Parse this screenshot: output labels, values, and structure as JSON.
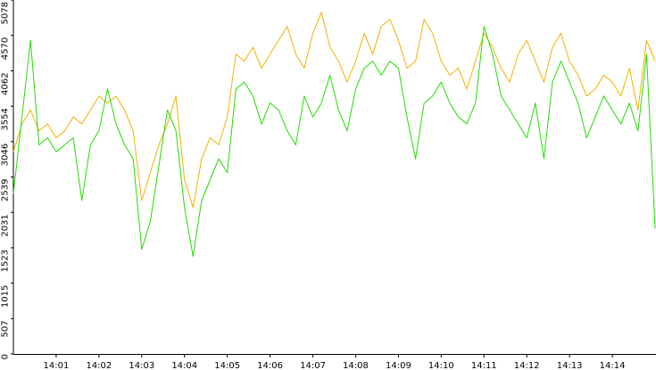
{
  "chart_data": {
    "type": "line",
    "categories": [
      null,
      null,
      null,
      null,
      null,
      "14:01",
      null,
      null,
      null,
      null,
      "14:02",
      null,
      null,
      null,
      null,
      "14:03",
      null,
      null,
      null,
      null,
      "14:04",
      null,
      null,
      null,
      null,
      "14:05",
      null,
      null,
      null,
      null,
      "14:06",
      null,
      null,
      null,
      null,
      "14:07",
      null,
      null,
      null,
      null,
      "14:08",
      null,
      null,
      null,
      null,
      "14:09",
      null,
      null,
      null,
      null,
      "14:10",
      null,
      null,
      null,
      null,
      "14:11",
      null,
      null,
      null,
      null,
      "14:12",
      null,
      null,
      null,
      null,
      "14:13",
      null,
      null,
      null,
      null,
      "14:14",
      null,
      null,
      null,
      null,
      null
    ],
    "series": [
      {
        "color": "#f5b000",
        "values": [
          2900,
          3300,
          3500,
          3200,
          3300,
          3100,
          3200,
          3400,
          3300,
          3500,
          3700,
          3600,
          3700,
          3500,
          3200,
          2200,
          2600,
          3000,
          3300,
          3700,
          2500,
          2100,
          2800,
          3100,
          3000,
          3400,
          4300,
          4200,
          4400,
          4100,
          4300,
          4500,
          4700,
          4300,
          4100,
          4600,
          4900,
          4400,
          4200,
          3900,
          4200,
          4600,
          4300,
          4700,
          4800,
          4500,
          4100,
          4200,
          4800,
          4600,
          4200,
          4000,
          4100,
          3800,
          4200,
          4600,
          4400,
          4100,
          3900,
          4300,
          4500,
          4200,
          3900,
          4400,
          4600,
          4200,
          4000,
          3700,
          3800,
          4000,
          3900,
          3700,
          4100,
          3500,
          4500,
          4200
        ]
      },
      {
        "color": "#22dd00",
        "values": [
          2300,
          3400,
          4500,
          3000,
          3100,
          2900,
          3000,
          3100,
          2200,
          3000,
          3200,
          3800,
          3300,
          3000,
          2800,
          1500,
          1900,
          2700,
          3500,
          3200,
          2100,
          1400,
          2200,
          2500,
          2800,
          2600,
          3800,
          3900,
          3700,
          3300,
          3600,
          3500,
          3200,
          3000,
          3700,
          3400,
          3600,
          4000,
          3500,
          3200,
          3800,
          4100,
          4200,
          4000,
          4200,
          4100,
          3400,
          2800,
          3600,
          3700,
          3900,
          3600,
          3400,
          3300,
          3600,
          4700,
          4300,
          3700,
          3500,
          3300,
          3100,
          3600,
          2800,
          3900,
          4200,
          3900,
          3600,
          3100,
          3400,
          3700,
          3500,
          3300,
          3600,
          3200,
          4300,
          1800
        ]
      }
    ],
    "ylim": [
      0,
      5078
    ],
    "yticks": [
      0,
      507,
      1015,
      1523,
      2031,
      2539,
      3046,
      3554,
      4062,
      4570,
      5078
    ]
  }
}
